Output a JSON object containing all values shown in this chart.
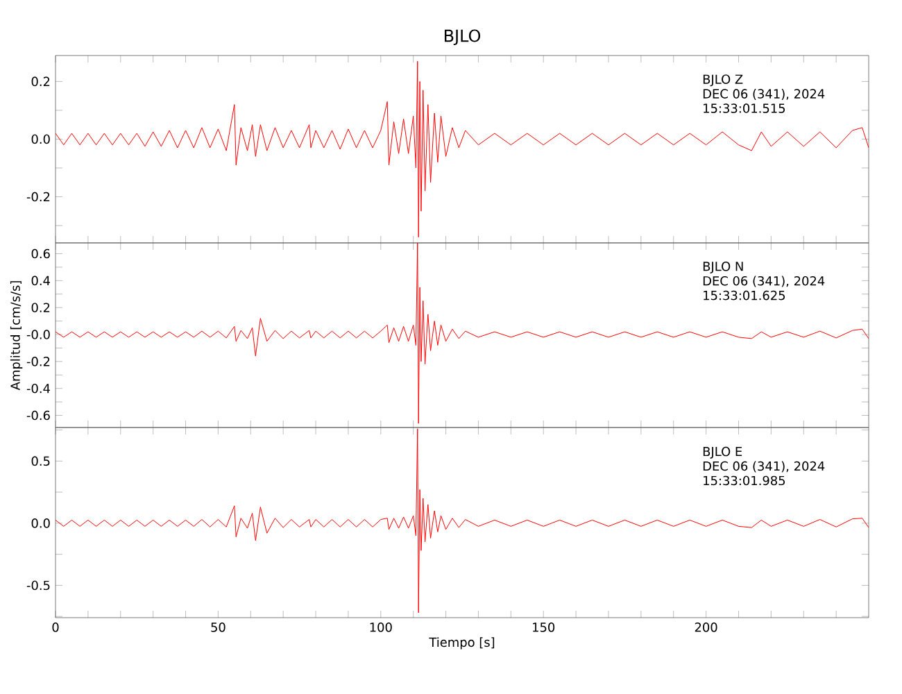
{
  "chart_data": [
    {
      "type": "line",
      "title": "BJLO",
      "tick_labels": "y",
      "xlim": [
        0,
        250
      ],
      "ylim": [
        -0.36,
        0.29
      ],
      "xticks": [
        0,
        {
          "value": 10,
          "label": null
        },
        {
          "value": 20,
          "label": null
        },
        {
          "value": 30,
          "label": null
        },
        {
          "value": 40,
          "label": null
        },
        50,
        {
          "value": 60,
          "label": null
        },
        {
          "value": 70,
          "label": null
        },
        {
          "value": 80,
          "label": null
        },
        {
          "value": 90,
          "label": null
        },
        100,
        {
          "value": 110,
          "label": null
        },
        {
          "value": 120,
          "label": null
        },
        {
          "value": 130,
          "label": null
        },
        {
          "value": 140,
          "label": null
        },
        150,
        {
          "value": 160,
          "label": null
        },
        {
          "value": 170,
          "label": null
        },
        {
          "value": 180,
          "label": null
        },
        {
          "value": 190,
          "label": null
        },
        200,
        {
          "value": 210,
          "label": null
        },
        {
          "value": 220,
          "label": null
        },
        {
          "value": 230,
          "label": null
        },
        {
          "value": 240,
          "label": null
        }
      ],
      "yticks": [
        {
          "value": -0.3,
          "label": null
        },
        -0.2,
        {
          "value": -0.1,
          "label": null
        },
        {
          "value": 0,
          "label": "0.0"
        },
        {
          "value": 0.1,
          "label": null
        },
        0.2
      ],
      "annotations": [
        "BJLO   Z",
        "DEC 06 (341), 2024",
        "15:33:01.515"
      ],
      "x": [
        0,
        2.5,
        5,
        7.5,
        10,
        12.5,
        15,
        17.5,
        20,
        22.5,
        25,
        27.5,
        30,
        32.5,
        35,
        37.5,
        40,
        42.5,
        45,
        47.5,
        50,
        52.5,
        55,
        55.5,
        57,
        59,
        60.5,
        61.5,
        63,
        65,
        67.5,
        70,
        72.5,
        75,
        78,
        78.5,
        80,
        82.5,
        85,
        87.5,
        90,
        92.5,
        95,
        97.5,
        100,
        102,
        102.5,
        104,
        105.5,
        107,
        108.5,
        110,
        110.8,
        111.3,
        111.6,
        112,
        112.4,
        113,
        113.6,
        114.5,
        115.3,
        116.5,
        117.5,
        118.5,
        120,
        122,
        124,
        126,
        130,
        135,
        140,
        145,
        150,
        155,
        160,
        165,
        170,
        175,
        180,
        185,
        190,
        195,
        200,
        205,
        210,
        214,
        217,
        220,
        225,
        230,
        235,
        240,
        245,
        248,
        250
      ],
      "series": [
        {
          "color": "#ff0000",
          "values": [
            0.02,
            -0.02,
            0.02,
            -0.02,
            0.02,
            -0.02,
            0.02,
            -0.02,
            0.02,
            -0.02,
            0.02,
            -0.025,
            0.025,
            -0.025,
            0.03,
            -0.03,
            0.03,
            -0.03,
            0.04,
            -0.03,
            0.035,
            -0.04,
            0.12,
            -0.09,
            0.04,
            -0.04,
            0.05,
            -0.06,
            0.05,
            -0.04,
            0.04,
            -0.03,
            0.03,
            -0.03,
            0.05,
            -0.03,
            0.03,
            -0.03,
            0.03,
            -0.035,
            0.035,
            -0.03,
            0.03,
            -0.03,
            0.03,
            0.13,
            -0.09,
            0.06,
            -0.05,
            0.07,
            -0.05,
            0.08,
            -0.1,
            0.27,
            -0.34,
            0.2,
            -0.25,
            0.17,
            -0.18,
            0.12,
            -0.15,
            0.09,
            -0.08,
            0.08,
            -0.06,
            0.04,
            -0.03,
            0.03,
            -0.02,
            0.02,
            -0.02,
            0.02,
            -0.02,
            0.02,
            -0.02,
            0.02,
            -0.02,
            0.02,
            -0.02,
            0.02,
            -0.02,
            0.02,
            -0.02,
            0.025,
            -0.02,
            -0.04,
            0.025,
            -0.025,
            0.025,
            -0.025,
            0.025,
            -0.03,
            0.03,
            0.04,
            -0.03
          ]
        }
      ]
    },
    {
      "type": "line",
      "ylabel": "Amplitud [cm/s/s]",
      "tick_labels": "y",
      "xlim": [
        0,
        250
      ],
      "ylim": [
        -0.69,
        0.68
      ],
      "xticks": [
        0,
        {
          "value": 10,
          "label": null
        },
        {
          "value": 20,
          "label": null
        },
        {
          "value": 30,
          "label": null
        },
        {
          "value": 40,
          "label": null
        },
        50,
        {
          "value": 60,
          "label": null
        },
        {
          "value": 70,
          "label": null
        },
        {
          "value": 80,
          "label": null
        },
        {
          "value": 90,
          "label": null
        },
        100,
        {
          "value": 110,
          "label": null
        },
        {
          "value": 120,
          "label": null
        },
        {
          "value": 130,
          "label": null
        },
        {
          "value": 140,
          "label": null
        },
        150,
        {
          "value": 160,
          "label": null
        },
        {
          "value": 170,
          "label": null
        },
        {
          "value": 180,
          "label": null
        },
        {
          "value": 190,
          "label": null
        },
        200,
        {
          "value": 210,
          "label": null
        },
        {
          "value": 220,
          "label": null
        },
        {
          "value": 230,
          "label": null
        },
        {
          "value": 240,
          "label": null
        }
      ],
      "yticks": [
        -0.6,
        {
          "value": -0.5,
          "label": null
        },
        -0.4,
        {
          "value": -0.3,
          "label": null
        },
        -0.2,
        {
          "value": -0.1,
          "label": null
        },
        {
          "value": 0,
          "label": "-0.0"
        },
        {
          "value": 0.1,
          "label": null
        },
        0.2,
        {
          "value": 0.3,
          "label": null
        },
        0.4,
        {
          "value": 0.5,
          "label": null
        },
        0.6
      ],
      "annotations": [
        "BJLO   N",
        "DEC 06 (341), 2024",
        "15:33:01.625"
      ],
      "x": [
        0,
        2.5,
        5,
        7.5,
        10,
        12.5,
        15,
        17.5,
        20,
        22.5,
        25,
        27.5,
        30,
        32.5,
        35,
        37.5,
        40,
        42.5,
        45,
        47.5,
        50,
        52.5,
        55,
        55.5,
        57,
        59,
        60.5,
        61.5,
        63,
        65,
        67.5,
        70,
        72.5,
        75,
        78,
        78.5,
        80,
        82.5,
        85,
        87.5,
        90,
        92.5,
        95,
        97.5,
        100,
        102,
        102.5,
        104,
        105.5,
        107,
        108.5,
        110,
        110.8,
        111.3,
        111.6,
        112,
        112.4,
        113,
        113.6,
        114.5,
        115.3,
        116.5,
        117.5,
        118.5,
        120,
        122,
        124,
        126,
        130,
        135,
        140,
        145,
        150,
        155,
        160,
        165,
        170,
        175,
        180,
        185,
        190,
        195,
        200,
        205,
        210,
        214,
        217,
        220,
        225,
        230,
        235,
        240,
        245,
        248,
        250
      ],
      "series": [
        {
          "color": "#ff0000",
          "values": [
            0.02,
            -0.02,
            0.02,
            -0.02,
            0.02,
            -0.02,
            0.02,
            -0.02,
            0.02,
            -0.02,
            0.02,
            -0.02,
            0.02,
            -0.02,
            0.02,
            -0.02,
            0.02,
            -0.02,
            0.025,
            -0.02,
            0.025,
            -0.025,
            0.06,
            -0.05,
            0.03,
            -0.03,
            0.05,
            -0.16,
            0.12,
            -0.05,
            0.03,
            -0.03,
            0.025,
            -0.025,
            0.03,
            -0.025,
            0.025,
            -0.025,
            0.025,
            -0.025,
            0.025,
            -0.025,
            0.025,
            -0.025,
            0.025,
            0.07,
            -0.06,
            0.05,
            -0.05,
            0.06,
            -0.05,
            0.07,
            -0.08,
            0.68,
            -0.66,
            0.35,
            -0.2,
            0.25,
            -0.22,
            0.15,
            -0.12,
            0.1,
            -0.08,
            0.07,
            -0.05,
            0.04,
            -0.03,
            0.025,
            -0.02,
            0.02,
            -0.02,
            0.02,
            -0.02,
            0.02,
            -0.02,
            0.02,
            -0.02,
            0.02,
            -0.02,
            0.02,
            -0.02,
            0.02,
            -0.02,
            0.02,
            -0.02,
            -0.03,
            0.02,
            -0.02,
            0.02,
            -0.02,
            0.025,
            -0.025,
            0.03,
            0.04,
            -0.03
          ]
        }
      ]
    },
    {
      "type": "line",
      "xlabel": "Tiempo [s]",
      "xlim": [
        0,
        250
      ],
      "ylim": [
        -0.76,
        0.77
      ],
      "xticks": [
        0,
        {
          "value": 10,
          "label": null
        },
        {
          "value": 20,
          "label": null
        },
        {
          "value": 30,
          "label": null
        },
        {
          "value": 40,
          "label": null
        },
        50,
        {
          "value": 60,
          "label": null
        },
        {
          "value": 70,
          "label": null
        },
        {
          "value": 80,
          "label": null
        },
        {
          "value": 90,
          "label": null
        },
        100,
        {
          "value": 110,
          "label": null
        },
        {
          "value": 120,
          "label": null
        },
        {
          "value": 130,
          "label": null
        },
        {
          "value": 140,
          "label": null
        },
        150,
        {
          "value": 160,
          "label": null
        },
        {
          "value": 170,
          "label": null
        },
        {
          "value": 180,
          "label": null
        },
        {
          "value": 190,
          "label": null
        },
        200,
        {
          "value": 210,
          "label": null
        },
        {
          "value": 220,
          "label": null
        },
        {
          "value": 230,
          "label": null
        },
        {
          "value": 240,
          "label": null
        }
      ],
      "yticks": [
        {
          "value": -0.75,
          "label": null
        },
        -0.5,
        {
          "value": -0.25,
          "label": null
        },
        {
          "value": 0,
          "label": "0.0"
        },
        {
          "value": 0.25,
          "label": null
        },
        0.5,
        {
          "value": 0.75,
          "label": null
        }
      ],
      "annotations": [
        "BJLO   E",
        "DEC 06 (341), 2024",
        "15:33:01.985"
      ],
      "x": [
        0,
        2.5,
        5,
        7.5,
        10,
        12.5,
        15,
        17.5,
        20,
        22.5,
        25,
        27.5,
        30,
        32.5,
        35,
        37.5,
        40,
        42.5,
        45,
        47.5,
        50,
        52.5,
        55,
        55.5,
        57,
        59,
        60.5,
        61.5,
        63,
        65,
        67.5,
        70,
        72.5,
        75,
        78,
        78.5,
        80,
        82.5,
        85,
        87.5,
        90,
        92.5,
        95,
        97.5,
        100,
        102,
        102.5,
        104,
        105.5,
        107,
        108.5,
        110,
        110.8,
        111.3,
        111.6,
        112,
        112.4,
        113,
        113.6,
        114.5,
        115.3,
        116.5,
        117.5,
        118.5,
        120,
        122,
        124,
        126,
        130,
        135,
        140,
        145,
        150,
        155,
        160,
        165,
        170,
        175,
        180,
        185,
        190,
        195,
        200,
        205,
        210,
        214,
        217,
        220,
        225,
        230,
        235,
        240,
        245,
        248,
        250
      ],
      "series": [
        {
          "color": "#ff0000",
          "values": [
            0.025,
            -0.025,
            0.025,
            -0.025,
            0.025,
            -0.025,
            0.025,
            -0.025,
            0.025,
            -0.025,
            0.025,
            -0.025,
            0.025,
            -0.025,
            0.025,
            -0.025,
            0.025,
            -0.025,
            0.03,
            -0.03,
            0.03,
            -0.03,
            0.14,
            -0.11,
            0.04,
            -0.04,
            0.08,
            -0.14,
            0.13,
            -0.08,
            0.04,
            -0.035,
            0.03,
            -0.03,
            0.03,
            -0.03,
            0.03,
            -0.03,
            0.03,
            -0.03,
            0.03,
            -0.03,
            0.03,
            -0.03,
            0.03,
            0.04,
            -0.05,
            0.04,
            -0.04,
            0.05,
            -0.04,
            0.06,
            -0.1,
            0.76,
            -0.72,
            0.27,
            -0.22,
            0.2,
            -0.15,
            0.15,
            -0.12,
            0.1,
            -0.07,
            0.06,
            -0.05,
            0.04,
            -0.035,
            0.03,
            -0.025,
            0.025,
            -0.025,
            0.025,
            -0.025,
            0.025,
            -0.025,
            0.025,
            -0.025,
            0.025,
            -0.025,
            0.025,
            -0.025,
            0.025,
            -0.025,
            0.025,
            -0.025,
            -0.035,
            0.025,
            -0.025,
            0.025,
            -0.025,
            0.03,
            -0.03,
            0.035,
            0.04,
            -0.035
          ]
        }
      ]
    }
  ]
}
